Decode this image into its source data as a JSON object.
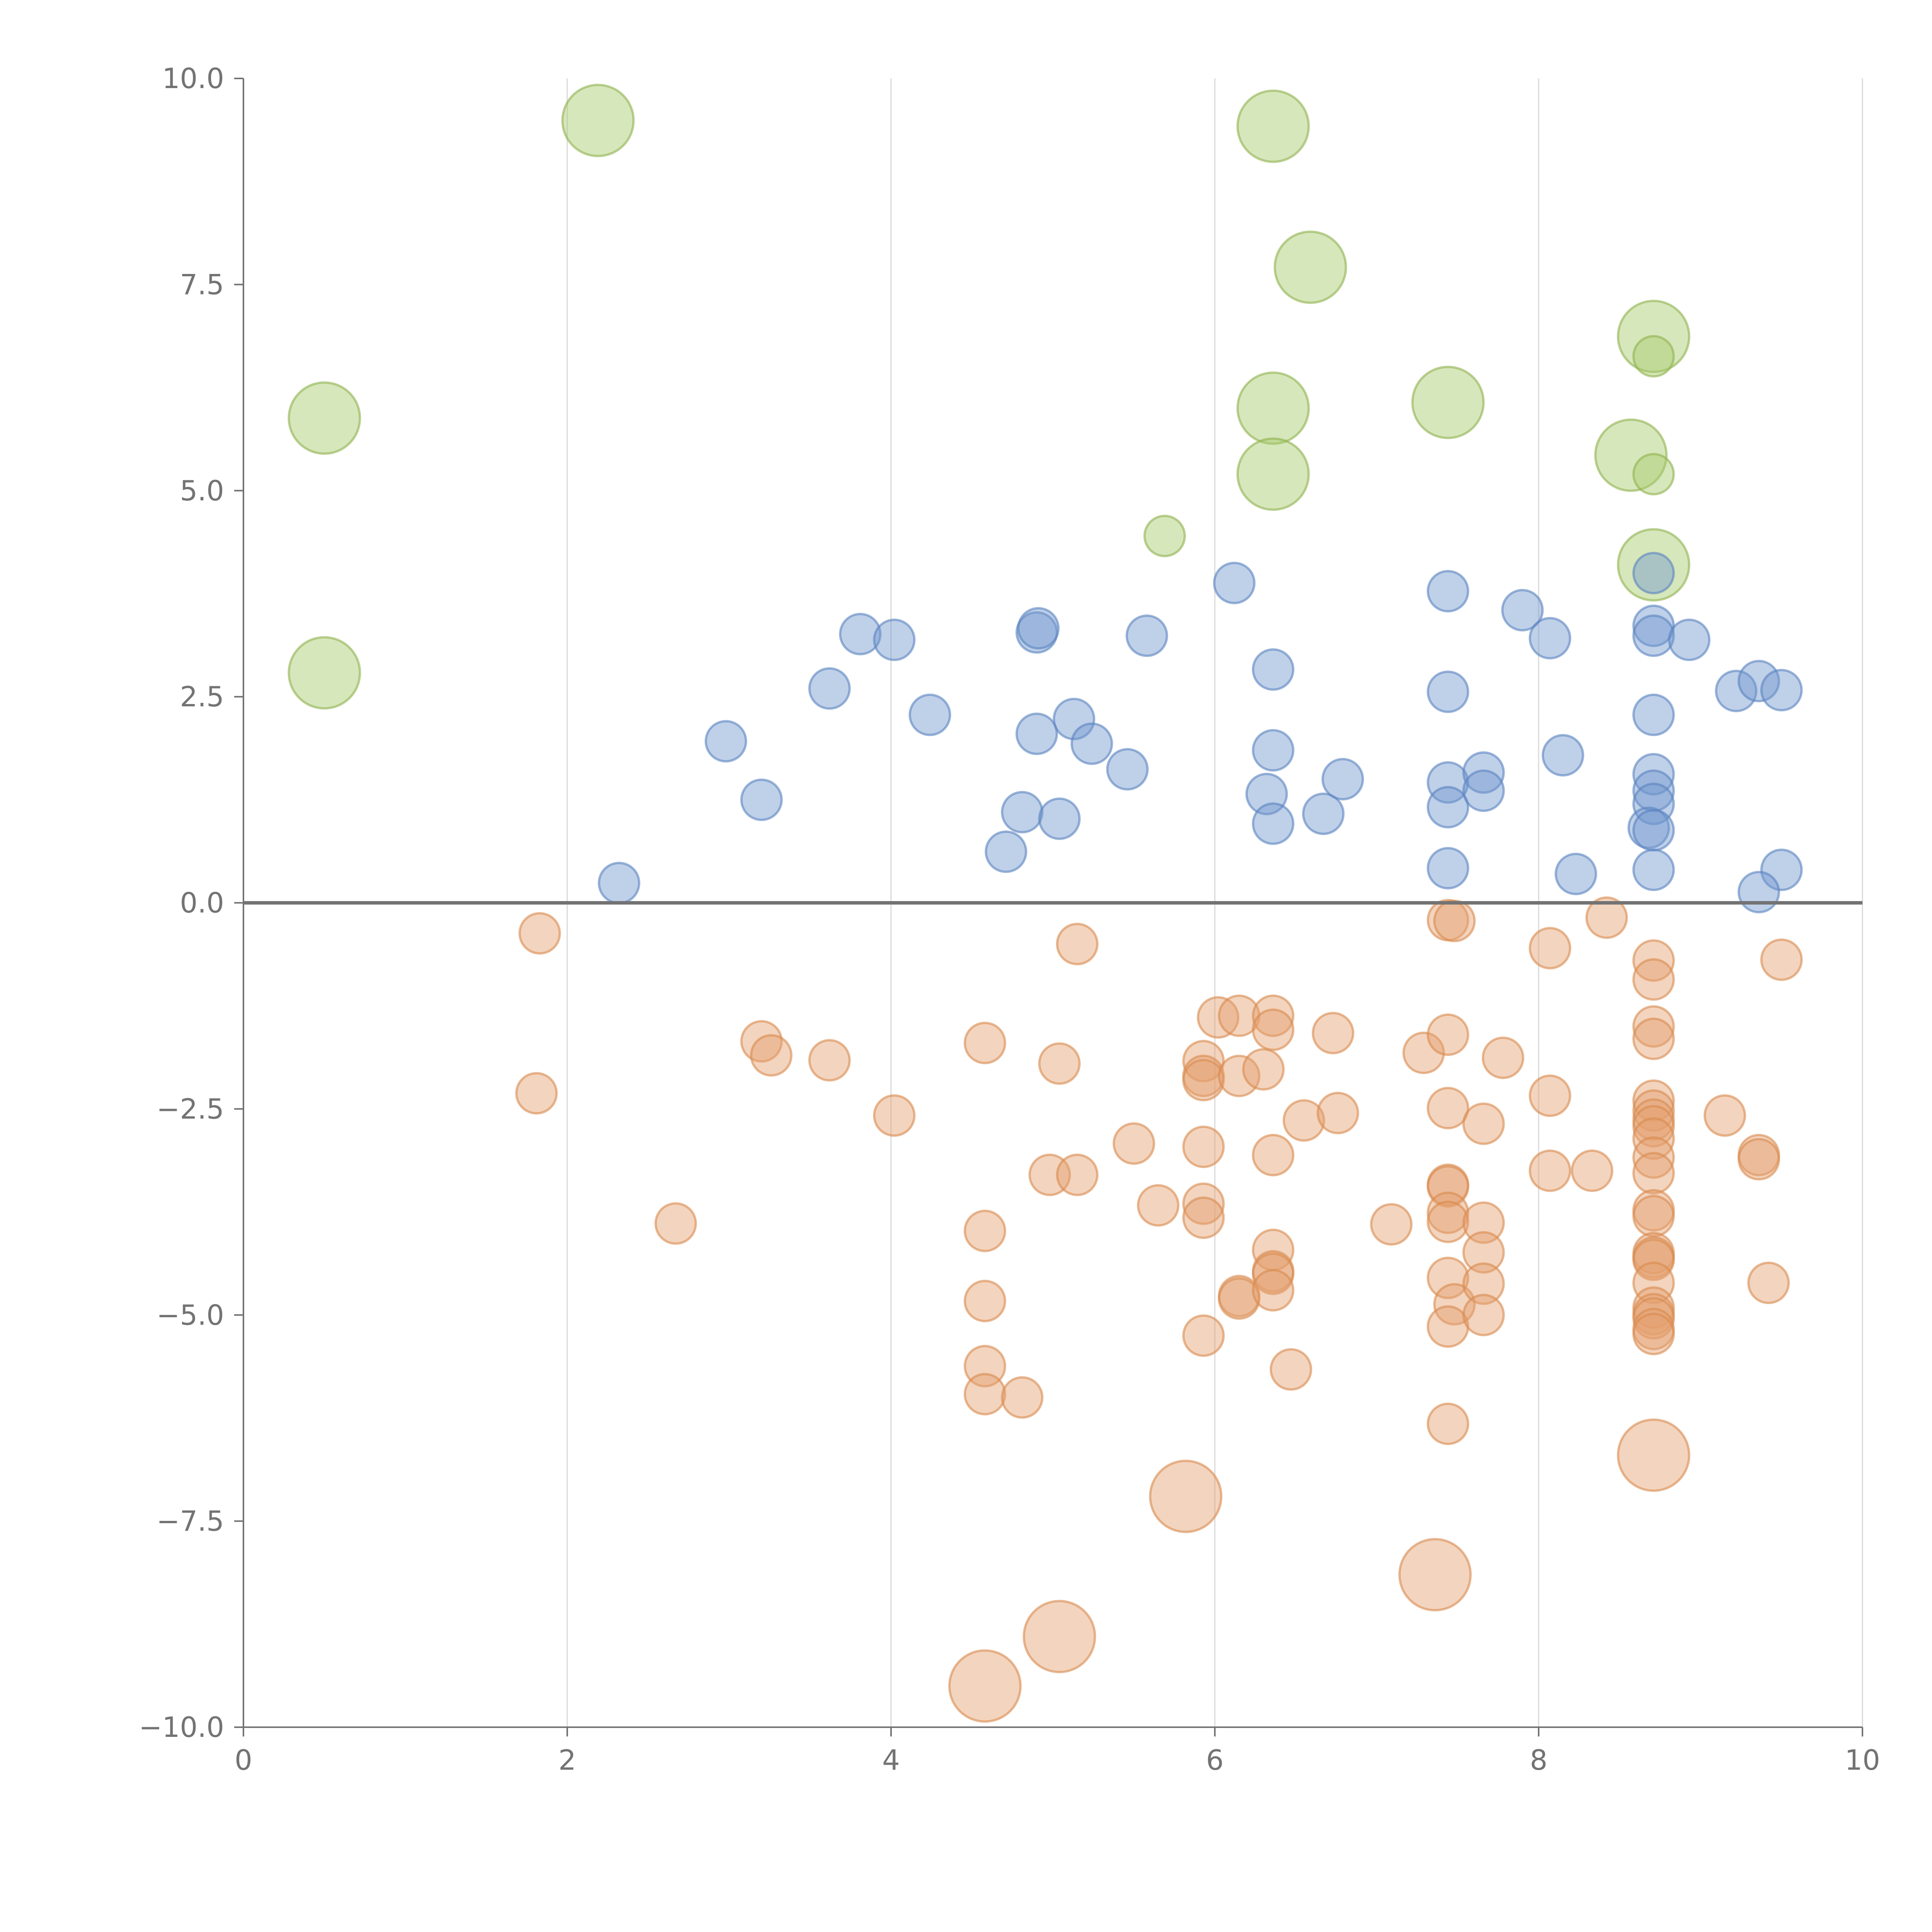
{
  "chart_data": {
    "type": "scatter",
    "title": "",
    "xlabel": "",
    "ylabel": "",
    "xlim": [
      0,
      10
    ],
    "ylim": [
      -10,
      10
    ],
    "x_ticks": [
      0,
      2,
      4,
      6,
      8,
      10
    ],
    "y_ticks": [
      -10,
      -7.5,
      -5,
      -2.5,
      0,
      2.5,
      5,
      7.5,
      10
    ],
    "x_tick_labels": [
      "0",
      "2",
      "4",
      "6",
      "8",
      "10"
    ],
    "y_tick_labels": [
      "−10.0",
      "−7.5",
      "−5.0",
      "−2.5",
      "0.0",
      "2.5",
      "5.0",
      "7.5",
      "10.0"
    ],
    "vertical_grid": true,
    "horizontal_grid": false,
    "reference_line_y": 0,
    "series": [
      {
        "name": "green",
        "color": "#a6c96a",
        "stroke": "#8fb34f",
        "points": [
          [
            0.5,
            5.88,
            3
          ],
          [
            0.5,
            2.79,
            3
          ],
          [
            2.19,
            9.49,
            3
          ],
          [
            5.69,
            4.45,
            1
          ],
          [
            6.36,
            9.42,
            3
          ],
          [
            6.59,
            7.71,
            3
          ],
          [
            6.36,
            6.0,
            3
          ],
          [
            6.36,
            5.2,
            3
          ],
          [
            7.44,
            6.07,
            3
          ],
          [
            8.71,
            6.87,
            3
          ],
          [
            8.71,
            6.63,
            1
          ],
          [
            8.57,
            5.43,
            3
          ],
          [
            8.71,
            5.2,
            1
          ],
          [
            8.71,
            4.1,
            3
          ]
        ]
      },
      {
        "name": "blue",
        "color": "#7097cf",
        "stroke": "#5a83c0",
        "points": [
          [
            2.32,
            0.24,
            1
          ],
          [
            2.98,
            1.96,
            1
          ],
          [
            3.2,
            1.25,
            1
          ],
          [
            3.62,
            2.6,
            1
          ],
          [
            3.81,
            3.26,
            1
          ],
          [
            4.02,
            3.19,
            1
          ],
          [
            4.24,
            2.28,
            1
          ],
          [
            4.71,
            0.62,
            1
          ],
          [
            4.81,
            1.1,
            1
          ],
          [
            4.9,
            2.05,
            1
          ],
          [
            4.9,
            3.28,
            1
          ],
          [
            4.91,
            3.33,
            1
          ],
          [
            5.04,
            1.02,
            1
          ],
          [
            5.13,
            2.23,
            1
          ],
          [
            5.24,
            1.93,
            1
          ],
          [
            5.46,
            1.62,
            1
          ],
          [
            5.58,
            3.24,
            1
          ],
          [
            6.12,
            3.88,
            1
          ],
          [
            6.32,
            1.32,
            1
          ],
          [
            6.36,
            2.83,
            1
          ],
          [
            6.36,
            1.85,
            1
          ],
          [
            6.36,
            0.96,
            1
          ],
          [
            6.67,
            1.08,
            1
          ],
          [
            6.79,
            1.5,
            1
          ],
          [
            7.44,
            3.78,
            1
          ],
          [
            7.44,
            2.56,
            1
          ],
          [
            7.44,
            1.46,
            1
          ],
          [
            7.44,
            1.16,
            1
          ],
          [
            7.44,
            0.42,
            1
          ],
          [
            7.66,
            1.58,
            1
          ],
          [
            7.66,
            1.36,
            1
          ],
          [
            7.9,
            3.55,
            1
          ],
          [
            8.07,
            3.21,
            1
          ],
          [
            8.15,
            1.79,
            1
          ],
          [
            8.23,
            0.35,
            1
          ],
          [
            8.71,
            4.0,
            1
          ],
          [
            8.71,
            3.36,
            1
          ],
          [
            8.71,
            3.24,
            1
          ],
          [
            8.71,
            2.28,
            1
          ],
          [
            8.71,
            1.56,
            1
          ],
          [
            8.71,
            1.36,
            1
          ],
          [
            8.71,
            1.2,
            1
          ],
          [
            8.68,
            0.91,
            1
          ],
          [
            8.71,
            0.88,
            1
          ],
          [
            8.71,
            0.4,
            1
          ],
          [
            8.93,
            3.19,
            1
          ],
          [
            9.22,
            2.57,
            1
          ],
          [
            9.36,
            2.69,
            1
          ],
          [
            9.5,
            2.58,
            1
          ],
          [
            9.5,
            0.4,
            1
          ],
          [
            9.36,
            0.13,
            1
          ]
        ]
      },
      {
        "name": "orange",
        "color": "#e5a06e",
        "stroke": "#d98a4f",
        "points": [
          [
            1.83,
            -0.37,
            1
          ],
          [
            1.81,
            -2.31,
            1
          ],
          [
            2.67,
            -3.89,
            1
          ],
          [
            3.2,
            -1.68,
            1
          ],
          [
            3.26,
            -1.85,
            1
          ],
          [
            3.62,
            -1.91,
            1
          ],
          [
            4.02,
            -2.58,
            1
          ],
          [
            4.58,
            -1.7,
            1
          ],
          [
            4.58,
            -3.98,
            1
          ],
          [
            4.58,
            -4.83,
            1
          ],
          [
            4.58,
            -5.62,
            1
          ],
          [
            4.58,
            -5.96,
            1
          ],
          [
            4.81,
            -6.0,
            1
          ],
          [
            4.98,
            -3.3,
            1
          ],
          [
            5.04,
            -1.95,
            1
          ],
          [
            5.15,
            -0.5,
            1
          ],
          [
            5.15,
            -3.3,
            1
          ],
          [
            5.5,
            -2.92,
            1
          ],
          [
            5.65,
            -3.67,
            1
          ],
          [
            5.93,
            -1.92,
            1
          ],
          [
            5.93,
            -2.1,
            1
          ],
          [
            5.93,
            -2.15,
            1
          ],
          [
            5.93,
            -2.96,
            1
          ],
          [
            5.93,
            -3.65,
            1
          ],
          [
            5.93,
            -3.82,
            1
          ],
          [
            5.93,
            -5.25,
            1
          ],
          [
            6.02,
            -1.39,
            1
          ],
          [
            6.15,
            -1.37,
            1
          ],
          [
            6.15,
            -2.1,
            1
          ],
          [
            6.15,
            -4.77,
            1
          ],
          [
            6.15,
            -4.8,
            1
          ],
          [
            6.3,
            -2.02,
            1
          ],
          [
            6.36,
            -1.37,
            1
          ],
          [
            6.36,
            -1.54,
            1
          ],
          [
            6.36,
            -3.06,
            1
          ],
          [
            6.36,
            -4.21,
            1
          ],
          [
            6.36,
            -4.47,
            1
          ],
          [
            6.36,
            -4.5,
            1
          ],
          [
            6.36,
            -4.7,
            1
          ],
          [
            6.47,
            -5.66,
            1
          ],
          [
            6.55,
            -2.64,
            1
          ],
          [
            6.73,
            -1.58,
            1
          ],
          [
            6.76,
            -2.55,
            1
          ],
          [
            7.09,
            -3.9,
            1
          ],
          [
            7.29,
            -1.82,
            1
          ],
          [
            7.44,
            -0.21,
            1
          ],
          [
            7.48,
            -0.22,
            1
          ],
          [
            7.44,
            -1.6,
            1
          ],
          [
            7.44,
            -2.49,
            1
          ],
          [
            7.44,
            -3.42,
            1
          ],
          [
            7.44,
            -3.44,
            1
          ],
          [
            7.44,
            -3.76,
            1
          ],
          [
            7.44,
            -3.87,
            1
          ],
          [
            7.44,
            -4.55,
            1
          ],
          [
            7.48,
            -4.87,
            1
          ],
          [
            7.44,
            -5.14,
            1
          ],
          [
            7.44,
            -6.32,
            1
          ],
          [
            7.66,
            -2.68,
            1
          ],
          [
            7.66,
            -3.88,
            1
          ],
          [
            7.66,
            -4.24,
            1
          ],
          [
            7.66,
            -4.62,
            1
          ],
          [
            7.66,
            -5.0,
            1
          ],
          [
            7.78,
            -1.88,
            1
          ],
          [
            8.07,
            -0.55,
            1
          ],
          [
            8.07,
            -2.34,
            1
          ],
          [
            8.07,
            -3.25,
            1
          ],
          [
            8.33,
            -3.25,
            1
          ],
          [
            8.42,
            -0.18,
            1
          ],
          [
            8.71,
            -0.7,
            1
          ],
          [
            8.71,
            -0.93,
            1
          ],
          [
            8.71,
            -1.5,
            1
          ],
          [
            8.71,
            -1.65,
            1
          ],
          [
            8.71,
            -2.4,
            1
          ],
          [
            8.71,
            -2.52,
            1
          ],
          [
            8.71,
            -2.63,
            1
          ],
          [
            8.71,
            -2.71,
            1
          ],
          [
            8.71,
            -2.86,
            1
          ],
          [
            8.71,
            -3.09,
            1
          ],
          [
            8.71,
            -3.28,
            1
          ],
          [
            8.71,
            -3.73,
            1
          ],
          [
            8.71,
            -3.8,
            1
          ],
          [
            8.71,
            -4.25,
            1
          ],
          [
            8.71,
            -4.3,
            1
          ],
          [
            8.71,
            -4.33,
            1
          ],
          [
            8.71,
            -4.61,
            1
          ],
          [
            8.71,
            -4.91,
            1
          ],
          [
            8.71,
            -4.99,
            1
          ],
          [
            8.71,
            -5.04,
            1
          ],
          [
            8.71,
            -5.17,
            1
          ],
          [
            8.71,
            -5.23,
            1
          ],
          [
            9.15,
            -2.58,
            1
          ],
          [
            9.36,
            -3.06,
            1
          ],
          [
            9.36,
            -3.11,
            1
          ],
          [
            9.5,
            -0.69,
            1
          ],
          [
            9.42,
            -4.61,
            1
          ],
          [
            4.58,
            -9.5,
            3
          ],
          [
            5.04,
            -8.9,
            3
          ],
          [
            5.82,
            -7.2,
            3
          ],
          [
            7.36,
            -8.15,
            3
          ],
          [
            8.71,
            -6.7,
            3
          ]
        ]
      }
    ],
    "bubble_size_note": "third value of each point is relative bubble size (1 = small, 3 = large)"
  }
}
